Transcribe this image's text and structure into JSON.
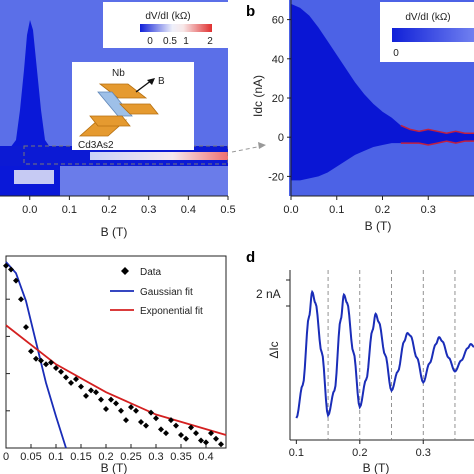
{
  "panels": {
    "a": {
      "label": "",
      "cbar_title": "dV/dI (kΩ)",
      "cbar_ticks": [
        "0",
        "0.5",
        "1",
        "2"
      ],
      "inset_labels": [
        "Nb",
        "B",
        "Cd3As2"
      ]
    },
    "b": {
      "label": "b",
      "cbar_title": "dV/dI (kΩ)",
      "cbar_ticks": [
        "0"
      ]
    },
    "c": {
      "label": ""
    },
    "d": {
      "label": "d"
    }
  },
  "colors": {
    "low": "#1020d8",
    "mid": "#f4f4f8",
    "high": "#e03030",
    "gaussian": "#1a2db8",
    "exponential": "#d42020",
    "data": "#000000",
    "osc": "#1a2db8"
  },
  "chart_data": [
    {
      "panel": "a",
      "type": "heatmap",
      "xlabel": "B (T)",
      "x_ticks": [
        0.0,
        0.1,
        0.2,
        0.3,
        0.4,
        0.5
      ],
      "xlim": [
        -0.075,
        0.5
      ],
      "colorbar": {
        "label": "dV/dI (kΩ)",
        "ticks": [
          0,
          0.5,
          1,
          2
        ],
        "range": [
          0,
          2
        ]
      },
      "description": "superconducting dome below ~0.07 T, thin low-resistance tail up to 0.5 T"
    },
    {
      "panel": "b",
      "type": "heatmap",
      "xlabel": "B (T)",
      "ylabel": "Idc (nA)",
      "x_ticks": [
        0.0,
        0.1,
        0.2,
        0.3
      ],
      "xlim": [
        0.0,
        0.4
      ],
      "y_ticks": [
        -20,
        0,
        20,
        40,
        60
      ],
      "ylim": [
        -30,
        70
      ],
      "colorbar": {
        "label": "dV/dI (kΩ)",
        "ticks": [
          0
        ]
      },
      "critical_current_edge": {
        "B": [
          0.0,
          0.02,
          0.04,
          0.06,
          0.08,
          0.1,
          0.12,
          0.14,
          0.16,
          0.18,
          0.2,
          0.22,
          0.24,
          0.26,
          0.28,
          0.3,
          0.32,
          0.34,
          0.36,
          0.38,
          0.4
        ],
        "Ic_upper": [
          68,
          66,
          62,
          56,
          49,
          42,
          35,
          28,
          22,
          17,
          13,
          10,
          6,
          4,
          3,
          4,
          3,
          2,
          3,
          2,
          2
        ],
        "Ic_lower": [
          -22,
          -22,
          -21,
          -20,
          -18,
          -15,
          -12,
          -9,
          -7,
          -5,
          -4,
          -3,
          -3,
          -3,
          -3,
          -4,
          -3,
          -2,
          -3,
          -2,
          -2
        ]
      }
    },
    {
      "panel": "c",
      "type": "scatter",
      "xlabel": "B (T)",
      "x_ticks": [
        0.0,
        0.05,
        0.1,
        0.15,
        0.2,
        0.25,
        0.3,
        0.35,
        0.4
      ],
      "xlim": [
        0.0,
        0.44
      ],
      "ylim": [
        0.0,
        1.0
      ],
      "series": [
        {
          "name": "Data",
          "kind": "points",
          "x": [
            0.0,
            0.01,
            0.02,
            0.03,
            0.04,
            0.05,
            0.06,
            0.07,
            0.08,
            0.09,
            0.1,
            0.11,
            0.12,
            0.13,
            0.14,
            0.15,
            0.16,
            0.17,
            0.18,
            0.19,
            0.2,
            0.21,
            0.22,
            0.23,
            0.24,
            0.25,
            0.26,
            0.27,
            0.28,
            0.29,
            0.3,
            0.31,
            0.32,
            0.33,
            0.34,
            0.35,
            0.36,
            0.37,
            0.38,
            0.39,
            0.4,
            0.41,
            0.42,
            0.43
          ],
          "y": [
            0.98,
            0.96,
            0.9,
            0.8,
            0.65,
            0.52,
            0.48,
            0.47,
            0.45,
            0.46,
            0.43,
            0.41,
            0.38,
            0.35,
            0.37,
            0.33,
            0.28,
            0.31,
            0.3,
            0.26,
            0.21,
            0.26,
            0.24,
            0.2,
            0.15,
            0.22,
            0.2,
            0.14,
            0.12,
            0.19,
            0.16,
            0.1,
            0.08,
            0.15,
            0.12,
            0.07,
            0.05,
            0.11,
            0.08,
            0.04,
            0.03,
            0.08,
            0.05,
            0.02
          ]
        },
        {
          "name": "Gaussian fit",
          "kind": "line",
          "x": [
            0.0,
            0.02,
            0.04,
            0.06,
            0.08,
            0.1,
            0.12
          ],
          "y": [
            1.0,
            0.94,
            0.79,
            0.57,
            0.35,
            0.17,
            0.0
          ]
        },
        {
          "name": "Exponential fit",
          "kind": "line",
          "x": [
            0.0,
            0.1,
            0.2,
            0.3,
            0.44
          ],
          "y": [
            0.66,
            0.45,
            0.3,
            0.18,
            0.07
          ]
        }
      ]
    },
    {
      "panel": "d",
      "type": "line",
      "xlabel": "B (T)",
      "ylabel": "ΔIc",
      "scalebar": "2 nA",
      "x_ticks": [
        0.1,
        0.2,
        0.3
      ],
      "xlim": [
        0.09,
        0.38
      ],
      "dashed_lines_x": [
        0.15,
        0.2,
        0.25,
        0.3,
        0.35
      ],
      "series": [
        {
          "name": "",
          "oscillation_period_T": 0.05,
          "peaks_x": [
            0.125,
            0.175,
            0.225,
            0.275,
            0.325,
            0.375
          ],
          "peak_amplitude_nA": [
            2.4,
            2.3,
            1.6,
            0.9,
            0.75,
            0.5
          ],
          "x": [
            0.1,
            0.11,
            0.12,
            0.125,
            0.13,
            0.14,
            0.15,
            0.16,
            0.17,
            0.175,
            0.18,
            0.19,
            0.2,
            0.21,
            0.22,
            0.225,
            0.23,
            0.24,
            0.25,
            0.26,
            0.27,
            0.275,
            0.28,
            0.29,
            0.3,
            0.31,
            0.32,
            0.325,
            0.33,
            0.34,
            0.35,
            0.36,
            0.37,
            0.375,
            0.38
          ],
          "y": [
            -2.2,
            -1.0,
            1.5,
            2.4,
            2.0,
            0.2,
            -2.1,
            -1.2,
            1.4,
            2.3,
            2.0,
            0.2,
            -1.8,
            -0.8,
            1.0,
            1.6,
            1.3,
            0.1,
            -1.2,
            -0.5,
            0.6,
            0.9,
            0.8,
            0.0,
            -0.9,
            -0.2,
            0.5,
            0.75,
            0.6,
            0.0,
            -0.5,
            -0.1,
            0.35,
            0.5,
            0.4
          ]
        }
      ]
    }
  ]
}
